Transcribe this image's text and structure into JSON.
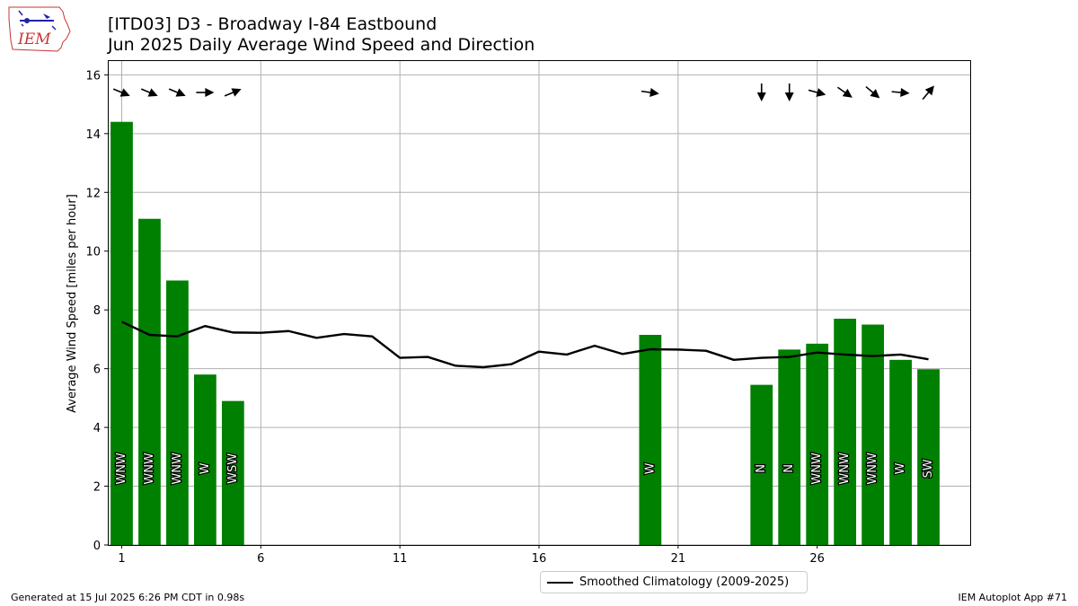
{
  "header": {
    "title": "[ITD03] D3 - Broadway I-84 Eastbound",
    "subtitle": "Jun 2025 Daily Average Wind Speed and Direction"
  },
  "logo": {
    "text": "IEM"
  },
  "footer": {
    "left": "Generated at 15 Jul 2025 6:26 PM CDT in 0.98s",
    "right": "IEM Autoplot App #71"
  },
  "legend": {
    "label": "Smoothed Climatology (2009-2025)"
  },
  "chart_data": {
    "type": "bar",
    "xlabel": "",
    "ylabel": "Average Wind Speed [miles per hour]",
    "xlim": [
      0.5,
      31.5
    ],
    "ylim": [
      0,
      16.5
    ],
    "xticks": [
      1,
      6,
      11,
      16,
      21,
      26
    ],
    "yticks": [
      0,
      2,
      4,
      6,
      8,
      10,
      12,
      14,
      16
    ],
    "grid": true,
    "legend_position": "bottom-center",
    "bar_color": "#008000",
    "bars": [
      {
        "day": 1,
        "speed": 14.4,
        "dir": "WNW",
        "dir_deg": 292.5
      },
      {
        "day": 2,
        "speed": 11.1,
        "dir": "WNW",
        "dir_deg": 292.5
      },
      {
        "day": 3,
        "speed": 9.0,
        "dir": "WNW",
        "dir_deg": 292.5
      },
      {
        "day": 4,
        "speed": 5.8,
        "dir": "W",
        "dir_deg": 270
      },
      {
        "day": 5,
        "speed": 4.9,
        "dir": "WSW",
        "dir_deg": 247.5
      },
      {
        "day": 20,
        "speed": 7.15,
        "dir": "W",
        "dir_deg": 278
      },
      {
        "day": 24,
        "speed": 5.45,
        "dir": "N",
        "dir_deg": 0
      },
      {
        "day": 25,
        "speed": 6.65,
        "dir": "N",
        "dir_deg": 0
      },
      {
        "day": 26,
        "speed": 6.85,
        "dir": "WNW",
        "dir_deg": 285
      },
      {
        "day": 27,
        "speed": 7.7,
        "dir": "WNW",
        "dir_deg": 305
      },
      {
        "day": 28,
        "speed": 7.5,
        "dir": "WNW",
        "dir_deg": 310
      },
      {
        "day": 29,
        "speed": 6.3,
        "dir": "W",
        "dir_deg": 275
      },
      {
        "day": 30,
        "speed": 5.98,
        "dir": "SW",
        "dir_deg": 220
      }
    ],
    "series": [
      {
        "name": "Smoothed Climatology (2009-2025)",
        "x": [
          1,
          2,
          3,
          4,
          5,
          6,
          7,
          8,
          9,
          10,
          11,
          12,
          13,
          14,
          15,
          16,
          17,
          18,
          19,
          20,
          21,
          22,
          23,
          24,
          25,
          26,
          27,
          28,
          29,
          30
        ],
        "y": [
          7.6,
          7.15,
          7.1,
          7.45,
          7.23,
          7.22,
          7.28,
          7.05,
          7.18,
          7.1,
          6.37,
          6.4,
          6.1,
          6.05,
          6.15,
          6.58,
          6.48,
          6.78,
          6.5,
          6.66,
          6.65,
          6.61,
          6.3,
          6.37,
          6.4,
          6.55,
          6.48,
          6.43,
          6.48,
          6.32
        ]
      }
    ]
  }
}
